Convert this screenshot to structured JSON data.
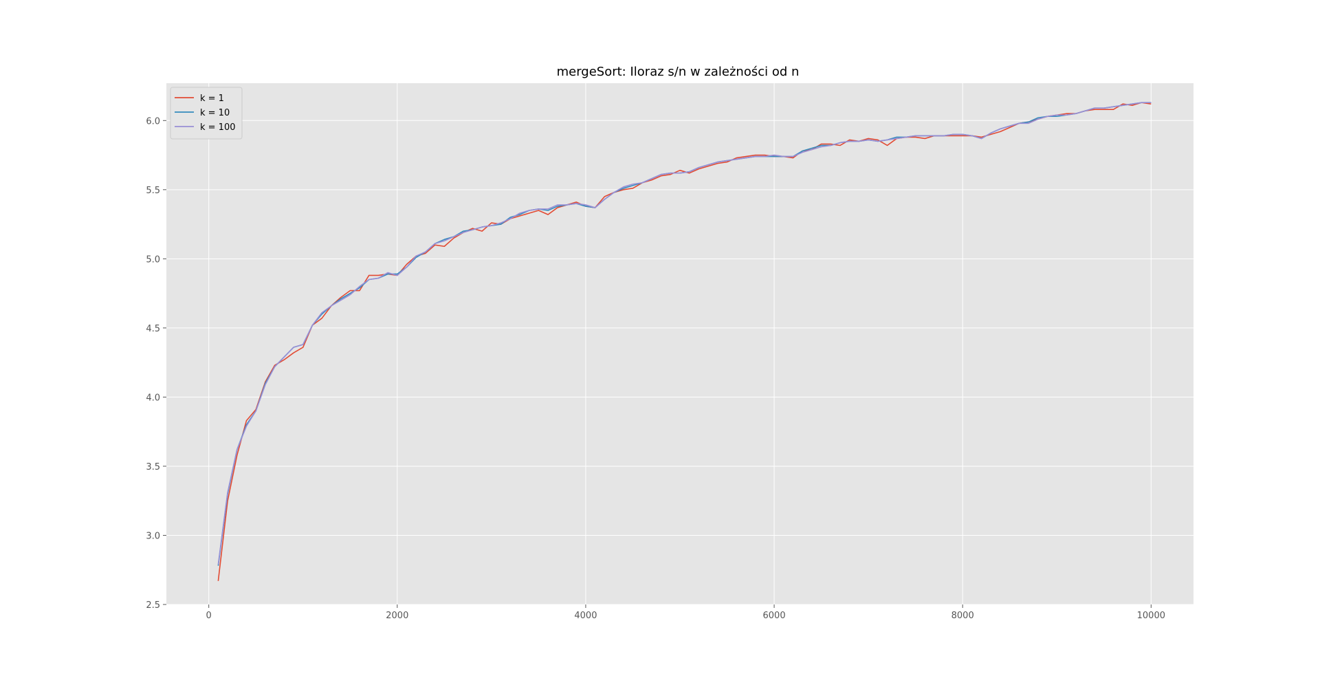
{
  "chart_data": {
    "type": "line",
    "title": "mergeSort: Iloraz s/n w zależności od n",
    "xlabel": "",
    "ylabel": "",
    "xlim": [
      -450,
      10450
    ],
    "ylim": [
      2.5,
      6.27
    ],
    "xticks": [
      0,
      2000,
      4000,
      6000,
      8000,
      10000
    ],
    "xtick_labels": [
      "0",
      "2000",
      "4000",
      "6000",
      "8000",
      "10000"
    ],
    "yticks": [
      2.5,
      3.0,
      3.5,
      4.0,
      4.5,
      5.0,
      5.5,
      6.0
    ],
    "ytick_labels": [
      "2.5",
      "3.0",
      "3.5",
      "4.0",
      "4.5",
      "5.0",
      "5.5",
      "6.0"
    ],
    "grid": true,
    "legend_position": "top-left",
    "colors": {
      "background": "#E5E5E5",
      "grid": "#FFFFFF",
      "k1": "#E24A33",
      "k10": "#348ABD",
      "k100": "#988ED5"
    },
    "x": [
      100,
      200,
      300,
      400,
      500,
      600,
      700,
      800,
      900,
      1000,
      1100,
      1200,
      1300,
      1400,
      1500,
      1600,
      1700,
      1800,
      1900,
      2000,
      2100,
      2200,
      2300,
      2400,
      2500,
      2600,
      2700,
      2800,
      2900,
      3000,
      3100,
      3200,
      3300,
      3400,
      3500,
      3600,
      3700,
      3800,
      3900,
      4000,
      4100,
      4200,
      4300,
      4400,
      4500,
      4600,
      4700,
      4800,
      4900,
      5000,
      5100,
      5200,
      5300,
      5400,
      5500,
      5600,
      5700,
      5800,
      5900,
      6000,
      6100,
      6200,
      6300,
      6400,
      6500,
      6600,
      6700,
      6800,
      6900,
      7000,
      7100,
      7200,
      7300,
      7400,
      7500,
      7600,
      7700,
      7800,
      7900,
      8000,
      8100,
      8200,
      8300,
      8400,
      8500,
      8600,
      8700,
      8800,
      8900,
      9000,
      9100,
      9200,
      9300,
      9400,
      9500,
      9600,
      9700,
      9800,
      9900,
      10000
    ],
    "series": [
      {
        "name": "k = 1",
        "color": "#E24A33",
        "values": [
          2.67,
          3.25,
          3.58,
          3.83,
          3.91,
          4.11,
          4.23,
          4.27,
          4.32,
          4.36,
          4.52,
          4.57,
          4.66,
          4.72,
          4.77,
          4.77,
          4.88,
          4.88,
          4.89,
          4.88,
          4.96,
          5.02,
          5.04,
          5.1,
          5.09,
          5.15,
          5.19,
          5.22,
          5.2,
          5.26,
          5.25,
          5.29,
          5.31,
          5.33,
          5.35,
          5.32,
          5.37,
          5.39,
          5.41,
          5.38,
          5.37,
          5.45,
          5.48,
          5.5,
          5.51,
          5.55,
          5.57,
          5.6,
          5.61,
          5.64,
          5.62,
          5.65,
          5.67,
          5.69,
          5.7,
          5.73,
          5.74,
          5.75,
          5.75,
          5.74,
          5.74,
          5.73,
          5.78,
          5.79,
          5.83,
          5.83,
          5.82,
          5.86,
          5.85,
          5.87,
          5.86,
          5.82,
          5.87,
          5.88,
          5.88,
          5.87,
          5.89,
          5.89,
          5.89,
          5.89,
          5.89,
          5.88,
          5.9,
          5.92,
          5.95,
          5.98,
          5.99,
          6.01,
          6.03,
          6.04,
          6.05,
          6.05,
          6.07,
          6.08,
          6.08,
          6.08,
          6.12,
          6.11,
          6.13,
          6.12
        ]
      },
      {
        "name": "k = 10",
        "color": "#348ABD",
        "values": [
          2.78,
          3.3,
          3.62,
          3.8,
          3.9,
          4.1,
          4.22,
          4.29,
          4.36,
          4.38,
          4.52,
          4.6,
          4.66,
          4.71,
          4.75,
          4.79,
          4.85,
          4.86,
          4.89,
          4.89,
          4.94,
          5.01,
          5.05,
          5.11,
          5.14,
          5.16,
          5.2,
          5.21,
          5.23,
          5.24,
          5.25,
          5.3,
          5.32,
          5.35,
          5.36,
          5.35,
          5.38,
          5.39,
          5.4,
          5.38,
          5.37,
          5.43,
          5.48,
          5.51,
          5.53,
          5.55,
          5.58,
          5.61,
          5.62,
          5.62,
          5.63,
          5.66,
          5.68,
          5.7,
          5.71,
          5.72,
          5.73,
          5.74,
          5.74,
          5.74,
          5.74,
          5.74,
          5.78,
          5.8,
          5.82,
          5.82,
          5.84,
          5.85,
          5.85,
          5.86,
          5.85,
          5.86,
          5.88,
          5.88,
          5.89,
          5.89,
          5.89,
          5.89,
          5.9,
          5.9,
          5.89,
          5.87,
          5.91,
          5.94,
          5.96,
          5.98,
          5.99,
          6.02,
          6.03,
          6.03,
          6.04,
          6.05,
          6.07,
          6.09,
          6.09,
          6.1,
          6.11,
          6.12,
          6.13,
          6.13
        ]
      },
      {
        "name": "k = 100",
        "color": "#988ED5",
        "values": [
          2.79,
          3.31,
          3.62,
          3.79,
          3.9,
          4.09,
          4.22,
          4.29,
          4.36,
          4.38,
          4.52,
          4.61,
          4.66,
          4.7,
          4.74,
          4.8,
          4.85,
          4.86,
          4.9,
          4.88,
          4.94,
          5.02,
          5.05,
          5.11,
          5.13,
          5.16,
          5.19,
          5.21,
          5.23,
          5.24,
          5.26,
          5.29,
          5.33,
          5.35,
          5.36,
          5.36,
          5.39,
          5.39,
          5.4,
          5.39,
          5.37,
          5.43,
          5.48,
          5.52,
          5.54,
          5.55,
          5.58,
          5.61,
          5.62,
          5.62,
          5.63,
          5.66,
          5.68,
          5.7,
          5.71,
          5.72,
          5.73,
          5.74,
          5.74,
          5.75,
          5.74,
          5.74,
          5.77,
          5.79,
          5.81,
          5.82,
          5.84,
          5.85,
          5.85,
          5.86,
          5.85,
          5.86,
          5.87,
          5.88,
          5.89,
          5.89,
          5.89,
          5.89,
          5.9,
          5.9,
          5.89,
          5.87,
          5.91,
          5.94,
          5.96,
          5.98,
          5.98,
          6.01,
          6.03,
          6.04,
          6.04,
          6.05,
          6.07,
          6.09,
          6.09,
          6.1,
          6.11,
          6.12,
          6.13,
          6.13
        ]
      }
    ]
  }
}
